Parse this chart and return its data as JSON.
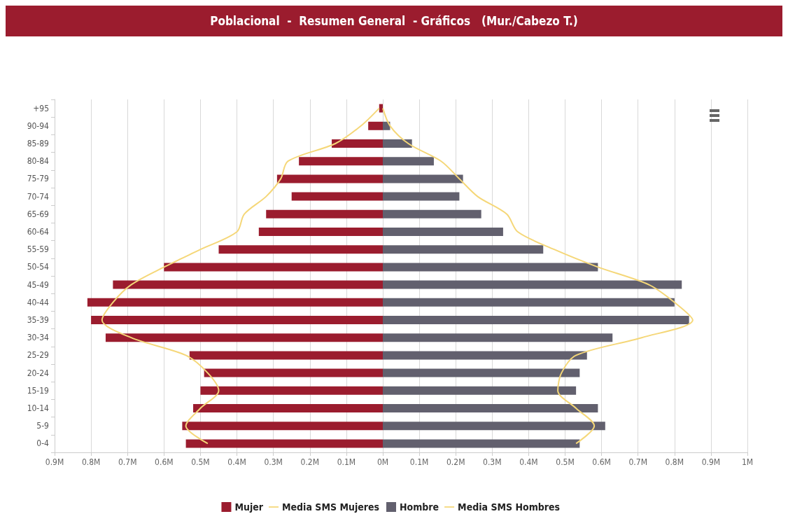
{
  "chart_data": [
    {
      "type": "bar",
      "orientation": "horizontal",
      "title": "Poblacional  -  Resumen General  - Gráficos   (Mur./Cabezo T.)",
      "categories": [
        "+95",
        "90-94",
        "85-89",
        "80-84",
        "75-79",
        "70-74",
        "65-69",
        "60-64",
        "55-59",
        "50-54",
        "45-49",
        "40-44",
        "35-39",
        "30-34",
        "25-29",
        "20-24",
        "15-19",
        "10-14",
        "5-9",
        "0-4"
      ],
      "series": [
        {
          "name": "Mujer",
          "color": "#9b1c2e",
          "values": [
            0.01,
            0.04,
            0.14,
            0.23,
            0.29,
            0.25,
            0.32,
            0.34,
            0.45,
            0.6,
            0.74,
            0.81,
            0.8,
            0.76,
            0.53,
            0.49,
            0.5,
            0.52,
            0.55,
            0.54
          ]
        },
        {
          "name": "Media SMS Mujeres",
          "type": "line",
          "color": "#f5d778",
          "values": [
            0.01,
            0.06,
            0.13,
            0.26,
            0.28,
            0.32,
            0.38,
            0.4,
            0.5,
            0.6,
            0.69,
            0.74,
            0.77,
            0.69,
            0.54,
            0.48,
            0.45,
            0.5,
            0.54,
            0.48
          ]
        }
      ],
      "xlim": [
        0.9,
        0
      ],
      "xticks": [
        {
          "value": 0.9,
          "label": "0.9M"
        },
        {
          "value": 0.8,
          "label": "0.8M"
        },
        {
          "value": 0.7,
          "label": "0.7M"
        },
        {
          "value": 0.6,
          "label": "0.6M"
        },
        {
          "value": 0.5,
          "label": "0.5M"
        },
        {
          "value": 0.4,
          "label": "0.4M"
        },
        {
          "value": 0.3,
          "label": "0.3M"
        },
        {
          "value": 0.2,
          "label": "0.2M"
        },
        {
          "value": 0.1,
          "label": "0.1M"
        },
        {
          "value": 0,
          "label": "0M"
        }
      ],
      "grid": "x",
      "legend": "bottom",
      "marker": "none",
      "line_style": "solid"
    },
    {
      "type": "bar",
      "orientation": "horizontal",
      "categories": [
        null,
        null,
        null,
        null,
        null,
        null,
        null,
        null,
        null,
        null,
        null,
        null,
        null,
        null,
        null,
        null,
        null,
        null,
        null,
        null
      ],
      "series": [
        {
          "name": "Hombre",
          "color": "#62606e",
          "values": [
            0,
            0.02,
            0.08,
            0.14,
            0.22,
            0.21,
            0.27,
            0.33,
            0.44,
            0.59,
            0.82,
            0.8,
            0.84,
            0.63,
            0.56,
            0.54,
            0.53,
            0.59,
            0.61,
            0.54
          ]
        },
        {
          "name": "Media SMS Hombres",
          "type": "line",
          "color": "#f5d778",
          "values": [
            0,
            0.02,
            0.07,
            0.16,
            0.21,
            0.26,
            0.34,
            0.37,
            0.47,
            0.59,
            0.73,
            0.8,
            0.85,
            0.71,
            0.53,
            0.49,
            0.48,
            0.53,
            0.58,
            0.53
          ]
        }
      ],
      "xlim": [
        0,
        1
      ],
      "xticks": [
        {
          "value": 0,
          "label": null
        },
        {
          "value": 0.1,
          "label": "0.1M"
        },
        {
          "value": 0.2,
          "label": "0.2M"
        },
        {
          "value": 0.3,
          "label": "0.3M"
        },
        {
          "value": 0.4,
          "label": "0.4M"
        },
        {
          "value": 0.5,
          "label": "0.5M"
        },
        {
          "value": 0.6,
          "label": "0.6M"
        },
        {
          "value": 0.7,
          "label": "0.7M"
        },
        {
          "value": 0.8,
          "label": "0.8M"
        },
        {
          "value": 0.9,
          "label": "0.9M"
        },
        {
          "value": 1,
          "label": "1M"
        }
      ],
      "tick_labels": "x",
      "grid": "x",
      "legend": "bottom",
      "marker": "none",
      "line_style": "solid"
    }
  ]
}
